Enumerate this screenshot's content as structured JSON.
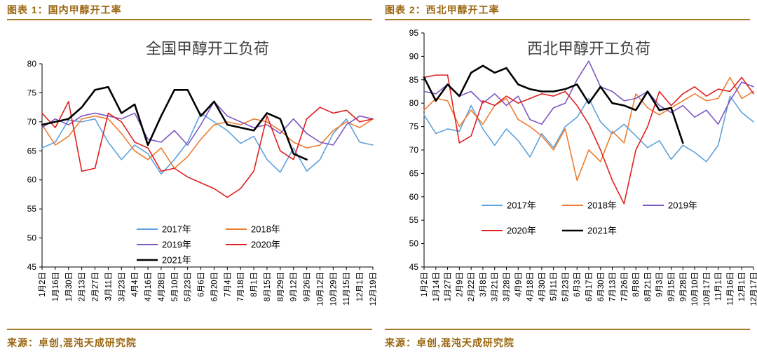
{
  "colors": {
    "accent": "#9A660F",
    "rule_line": "#A57A28",
    "axis": "#000000",
    "title_text": "#404040"
  },
  "panels": [
    {
      "caption": "图表 1：国内甲醇开工率",
      "source": "来源：卓创,混沌天成研究院"
    },
    {
      "caption": "图表 2：西北甲醇开工率",
      "source": "来源：卓创,混沌天成研究院"
    }
  ],
  "chart_data": [
    {
      "type": "line",
      "title": "全国甲醇开工负荷",
      "ylim": [
        45,
        80
      ],
      "ytick_step": 5,
      "grid": false,
      "legend_position": "inside-bottom-left",
      "categories": [
        "1月2日",
        "1月16日",
        "1月30日",
        "2月13日",
        "2月27日",
        "3月11日",
        "3月23日",
        "4月4日",
        "4月16日",
        "4月28日",
        "5月10日",
        "5月23日",
        "6月6日",
        "6月20日",
        "7月4日",
        "7月18日",
        "8月1日",
        "8月15日",
        "8月29日",
        "9月12日",
        "9月26日",
        "10月12日",
        "10月29日",
        "11月15日",
        "12月1日",
        "12月19日"
      ],
      "series": [
        {
          "name": "2017年",
          "color": "#5FA2DC",
          "width": 1.6,
          "values": [
            65.5,
            66.5,
            70.3,
            70,
            70.5,
            66.5,
            63.5,
            66,
            64.5,
            61,
            63.5,
            66.5,
            71.5,
            70,
            68.5,
            66.3,
            67.5,
            63.5,
            61.3,
            65.5,
            61.5,
            63.5,
            68,
            70.5,
            66.5,
            66
          ]
        },
        {
          "name": "2018年",
          "color": "#ED7D31",
          "width": 1.6,
          "values": [
            69.5,
            66,
            67.5,
            70.5,
            71,
            70.5,
            68,
            65,
            63.5,
            65.5,
            62,
            64,
            67,
            69.5,
            70,
            69.5,
            70.5,
            70,
            68.5,
            66.5,
            65.5,
            66,
            68.5,
            70,
            69,
            70.5
          ]
        },
        {
          "name": "2019年",
          "color": "#7E57C2",
          "width": 1.6,
          "values": [
            69,
            70.5,
            69.5,
            71,
            71.5,
            71,
            70.5,
            71.5,
            67,
            66.5,
            68.5,
            66,
            69.5,
            73.5,
            71,
            70,
            69,
            69.5,
            68,
            70.5,
            68,
            66.5,
            66,
            69.5,
            71,
            70.5
          ]
        },
        {
          "name": "2020年",
          "color": "#E02020",
          "width": 1.6,
          "values": [
            71.5,
            69,
            73.5,
            61.5,
            62,
            71.5,
            70,
            66.5,
            65.5,
            61.5,
            62,
            60.5,
            59.5,
            58.5,
            57,
            58.5,
            61.5,
            71,
            65,
            63.5,
            70.5,
            72.5,
            71.5,
            72,
            70,
            70.5
          ]
        },
        {
          "name": "2021年",
          "color": "#000000",
          "width": 2.6,
          "values": [
            69.5,
            70,
            70.5,
            72.5,
            75.5,
            76,
            71.5,
            73,
            66,
            71,
            75.5,
            75.5,
            71,
            73.5,
            69.5,
            69,
            68.5,
            71.5,
            70.5,
            64.5,
            63.5,
            null,
            null,
            null,
            null,
            null
          ]
        }
      ]
    },
    {
      "type": "line",
      "title": "西北甲醇开工负荷",
      "ylim": [
        45,
        95
      ],
      "ytick_step": 5,
      "grid": false,
      "legend_position": "inside-bottom-center",
      "categories": [
        "1月2日",
        "1月14日",
        "1月27日",
        "2月9日",
        "2月22日",
        "3月8日",
        "3月21日",
        "3月28日",
        "4月9日",
        "4月18日",
        "4月30日",
        "5月11日",
        "5月23日",
        "6月3日",
        "6月17日",
        "6月30日",
        "7月13日",
        "7月26日",
        "8月8日",
        "8月21日",
        "9月3日",
        "9月15日",
        "9月28日",
        "10月10日",
        "10月17日",
        "11月1日",
        "11月16日",
        "12月1日",
        "12月17日"
      ],
      "series": [
        {
          "name": "2017年",
          "color": "#5FA2DC",
          "width": 1.6,
          "values": [
            77.5,
            73.5,
            74.5,
            74,
            79.5,
            74.5,
            71,
            74.5,
            72,
            68.5,
            73.5,
            70.5,
            75,
            77,
            81,
            76,
            73.5,
            75.5,
            73,
            70.5,
            72,
            68,
            71,
            69.5,
            67.5,
            71,
            81.5,
            78,
            76
          ]
        },
        {
          "name": "2018年",
          "color": "#ED7D31",
          "width": 1.6,
          "values": [
            78.5,
            81,
            80.5,
            75,
            78.5,
            75.5,
            79.5,
            81,
            76.5,
            75,
            73,
            70,
            74.5,
            63.5,
            70,
            67.5,
            74,
            71.5,
            82,
            79,
            77.5,
            79,
            80.5,
            82,
            80.5,
            81,
            85.5,
            81,
            82.5
          ]
        },
        {
          "name": "2019年",
          "color": "#7E57C2",
          "width": 1.6,
          "values": [
            82.5,
            82,
            84,
            81.5,
            82.5,
            80,
            82,
            79.5,
            81.5,
            76.5,
            75.5,
            79,
            80,
            85,
            89,
            83.5,
            82.5,
            80.5,
            81,
            82.5,
            79.5,
            78,
            79.5,
            77,
            78.5,
            75.5,
            80.5,
            84.5,
            83.5
          ]
        },
        {
          "name": "2020年",
          "color": "#E02020",
          "width": 1.6,
          "values": [
            85.5,
            86,
            86,
            71.5,
            73,
            80.5,
            79.5,
            81.5,
            80,
            81,
            82,
            81.5,
            82.5,
            79.5,
            75.5,
            70,
            63.5,
            58.5,
            70,
            75,
            82.5,
            79.5,
            82,
            83.5,
            81.5,
            83,
            82.5,
            85.5,
            82
          ]
        },
        {
          "name": "2021年",
          "color": "#000000",
          "width": 2.6,
          "values": [
            85.5,
            80.5,
            84,
            81.5,
            86.5,
            88,
            86.5,
            87.5,
            84,
            83,
            82.5,
            82.5,
            83,
            84,
            80,
            83.5,
            80,
            79.5,
            78.5,
            82.5,
            78.5,
            79,
            71.5,
            null,
            null,
            null,
            null,
            null,
            null
          ]
        }
      ]
    }
  ]
}
